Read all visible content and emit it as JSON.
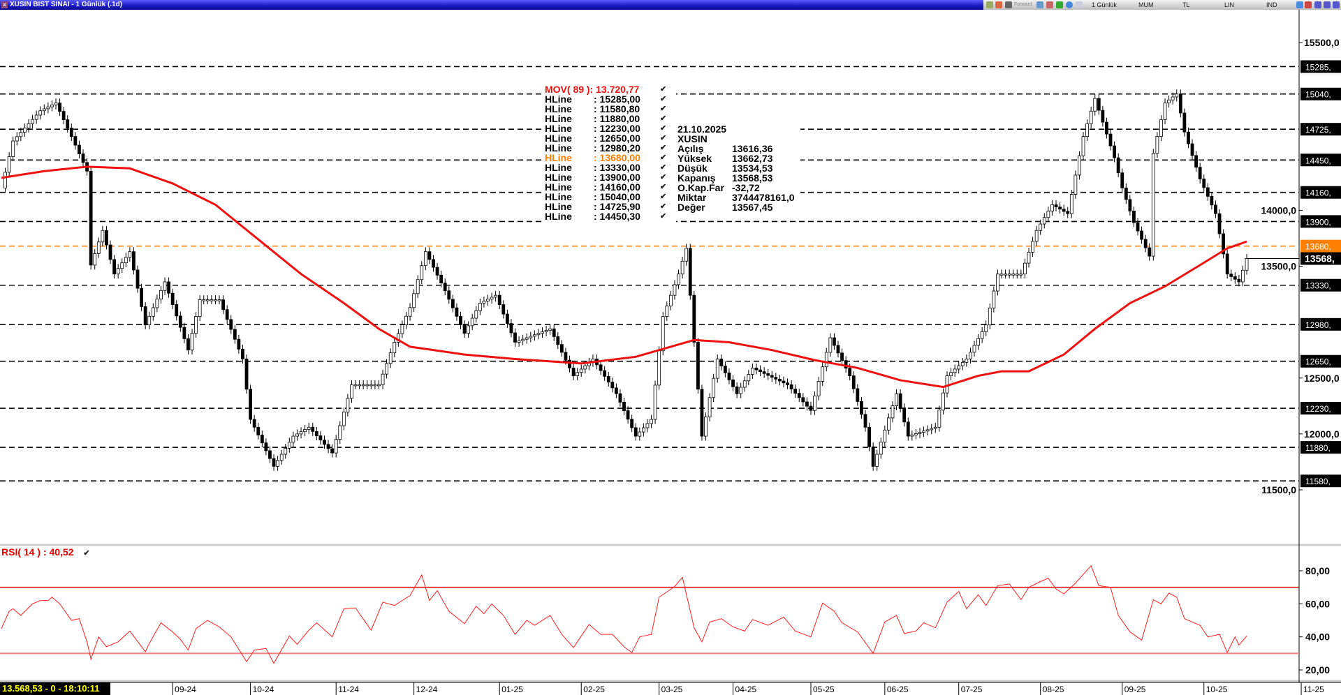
{
  "window": {
    "title": "XUSIN BIST SINAI - 1 Günlük (.1d)"
  },
  "toolbar": {
    "forward": "Forward",
    "period": "1 Günlük",
    "chart_type": "MUM",
    "currency": "TL",
    "scale": "LIN",
    "mode": "IND"
  },
  "legend": {
    "mov": "MOV( 89 ): 13.720,77",
    "hlines": [
      {
        "name": "HLine",
        "value": ": 15285,00"
      },
      {
        "name": "HLine",
        "value": ": 11580,80"
      },
      {
        "name": "HLine",
        "value": ": 11880,00"
      },
      {
        "name": "HLine",
        "value": ": 12230,00"
      },
      {
        "name": "HLine",
        "value": ": 12650,00"
      },
      {
        "name": "HLine",
        "value": ": 12980,20"
      },
      {
        "name": "HLine",
        "value": ": 13680,00",
        "highlight": true
      },
      {
        "name": "HLine",
        "value": ": 13330,00"
      },
      {
        "name": "HLine",
        "value": ": 13900,00"
      },
      {
        "name": "HLine",
        "value": ": 14160,00"
      },
      {
        "name": "HLine",
        "value": ": 15040,00"
      },
      {
        "name": "HLine",
        "value": ": 14725,90"
      },
      {
        "name": "HLine",
        "value": ": 14450,30"
      }
    ],
    "check": "✔"
  },
  "info": {
    "date": "21.10.2025",
    "symbol": "XUSIN",
    "rows": [
      {
        "k": "Açılış",
        "v": "13616,36"
      },
      {
        "k": "Yüksek",
        "v": "13662,73"
      },
      {
        "k": "Düşük",
        "v": "13534,53"
      },
      {
        "k": "Kapanış",
        "v": "13568,53"
      },
      {
        "k": "O.Kap.Far",
        "v": "-32,72"
      },
      {
        "k": "Miktar",
        "v": "3744478161,0"
      },
      {
        "k": "Değer",
        "v": "13567,45"
      }
    ]
  },
  "rsi_label": "RSI( 14 )  : 40,52",
  "status": "13.568,53 - 0 - 18:10:11",
  "colors": {
    "ma": "#ee1111",
    "hline_highlight": "#ff8000",
    "rsi": "#ff2020",
    "rsi_bands": "#e00000",
    "up": "#ffffff",
    "down": "#000000"
  },
  "chart_data": [
    {
      "type": "candlestick",
      "ylim": [
        11300,
        15700
      ],
      "y_ticks": [
        "15500,0",
        "14000,0",
        "13500,0",
        "12500,0",
        "12000,0",
        "11500,0"
      ],
      "y_tick_values": [
        15500,
        14000,
        13500,
        12500,
        12000,
        11500
      ],
      "x_ticks": [
        "09-24",
        "10-24",
        "11-24",
        "12-24",
        "01-25",
        "02-25",
        "03-25",
        "04-25",
        "05-25",
        "06-25",
        "07-25",
        "08-25",
        "09-25",
        "10-25",
        "11-25"
      ],
      "x_tick_days": [
        44,
        64,
        86,
        106,
        128,
        149,
        169,
        188,
        208,
        227,
        246,
        267,
        288,
        309,
        334
      ],
      "hlines": [
        {
          "value": 15285,
          "label": "15285,"
        },
        {
          "value": 15040,
          "label": "15040,"
        },
        {
          "value": 14725,
          "label": "14725,"
        },
        {
          "value": 14450,
          "label": "14450,"
        },
        {
          "value": 14160,
          "label": "14160,"
        },
        {
          "value": 13900,
          "label": "13900,"
        },
        {
          "value": 13680,
          "label": "13680,",
          "highlight": true
        },
        {
          "value": 13330,
          "label": "13330,"
        },
        {
          "value": 12980,
          "label": "12980,"
        },
        {
          "value": 12650,
          "label": "12650,"
        },
        {
          "value": 12230,
          "label": "12230,"
        },
        {
          "value": 11880,
          "label": "11880,"
        },
        {
          "value": 11580,
          "label": "11580,"
        }
      ],
      "last_price": {
        "value": 13568.53,
        "label": "13568,"
      },
      "closes": [
        [
          0,
          14200
        ],
        [
          3,
          14620
        ],
        [
          10,
          14890
        ],
        [
          14,
          14960
        ],
        [
          18,
          14660
        ],
        [
          22,
          14350
        ],
        [
          23,
          13510
        ],
        [
          26,
          13820
        ],
        [
          29,
          13430
        ],
        [
          33,
          13630
        ],
        [
          37,
          12975
        ],
        [
          42,
          13360
        ],
        [
          48,
          12750
        ],
        [
          51,
          13200
        ],
        [
          56,
          13200
        ],
        [
          62,
          12670
        ],
        [
          64,
          12130
        ],
        [
          70,
          11710
        ],
        [
          75,
          11980
        ],
        [
          79,
          12060
        ],
        [
          85,
          11830
        ],
        [
          90,
          12440
        ],
        [
          97,
          12440
        ],
        [
          101,
          12820
        ],
        [
          105,
          13130
        ],
        [
          109,
          13630
        ],
        [
          114,
          13280
        ],
        [
          119,
          12900
        ],
        [
          123,
          13170
        ],
        [
          127,
          13240
        ],
        [
          132,
          12820
        ],
        [
          141,
          12940
        ],
        [
          147,
          12520
        ],
        [
          152,
          12670
        ],
        [
          158,
          12360
        ],
        [
          163,
          11980
        ],
        [
          167,
          12130
        ],
        [
          170,
          13050
        ],
        [
          174,
          13430
        ],
        [
          176,
          13660
        ],
        [
          178,
          12820
        ],
        [
          180,
          11980
        ],
        [
          184,
          12670
        ],
        [
          189,
          12360
        ],
        [
          193,
          12590
        ],
        [
          202,
          12440
        ],
        [
          208,
          12210
        ],
        [
          213,
          12860
        ],
        [
          218,
          12520
        ],
        [
          222,
          12060
        ],
        [
          224,
          11710
        ],
        [
          230,
          12360
        ],
        [
          233,
          11980
        ],
        [
          240,
          12060
        ],
        [
          243,
          12520
        ],
        [
          248,
          12670
        ],
        [
          253,
          12975
        ],
        [
          256,
          13430
        ],
        [
          262,
          13430
        ],
        [
          266,
          13820
        ],
        [
          270,
          14050
        ],
        [
          274,
          13970
        ],
        [
          278,
          14660
        ],
        [
          281,
          15000
        ],
        [
          286,
          14470
        ],
        [
          288,
          14200
        ],
        [
          291,
          13890
        ],
        [
          295,
          13590
        ],
        [
          296,
          14510
        ],
        [
          299,
          14960
        ],
        [
          302,
          15040
        ],
        [
          304,
          14700
        ],
        [
          308,
          14280
        ],
        [
          312,
          13970
        ],
        [
          315,
          13430
        ],
        [
          318,
          13360
        ],
        [
          320,
          13568.53
        ]
      ],
      "ma_period": 89,
      "ma": [
        [
          0,
          14290
        ],
        [
          11,
          14350
        ],
        [
          22,
          14390
        ],
        [
          33,
          14375
        ],
        [
          44,
          14240
        ],
        [
          55,
          14050
        ],
        [
          66,
          13740
        ],
        [
          77,
          13430
        ],
        [
          88,
          13170
        ],
        [
          97,
          12940
        ],
        [
          105,
          12780
        ],
        [
          119,
          12710
        ],
        [
          132,
          12670
        ],
        [
          149,
          12630
        ],
        [
          163,
          12690
        ],
        [
          169,
          12750
        ],
        [
          178,
          12840
        ],
        [
          187,
          12820
        ],
        [
          198,
          12750
        ],
        [
          209,
          12660
        ],
        [
          220,
          12590
        ],
        [
          231,
          12480
        ],
        [
          242,
          12420
        ],
        [
          251,
          12520
        ],
        [
          257,
          12560
        ],
        [
          264,
          12560
        ],
        [
          273,
          12710
        ],
        [
          281,
          12940
        ],
        [
          290,
          13170
        ],
        [
          299,
          13320
        ],
        [
          308,
          13510
        ],
        [
          315,
          13660
        ],
        [
          320,
          13720.77
        ]
      ]
    },
    {
      "type": "line",
      "name": "RSI( 14 )",
      "ylim": [
        15,
        90
      ],
      "y_ticks": [
        "80,00",
        "60,00",
        "40,00",
        "20,00"
      ],
      "y_tick_values": [
        80,
        60,
        40,
        20
      ],
      "bands": [
        70,
        30
      ],
      "values": [
        [
          0,
          45
        ],
        [
          2,
          55.5
        ],
        [
          3,
          57
        ],
        [
          5,
          53
        ],
        [
          8,
          60
        ],
        [
          10,
          62
        ],
        [
          12,
          62
        ],
        [
          13,
          64
        ],
        [
          15,
          60
        ],
        [
          18,
          50
        ],
        [
          20,
          51
        ],
        [
          22,
          37
        ],
        [
          23,
          26.5
        ],
        [
          25,
          40
        ],
        [
          27,
          34
        ],
        [
          30,
          37
        ],
        [
          33,
          43.5
        ],
        [
          37,
          31
        ],
        [
          38,
          36
        ],
        [
          41,
          48.5
        ],
        [
          44,
          43
        ],
        [
          46,
          38.5
        ],
        [
          48,
          32
        ],
        [
          50,
          45
        ],
        [
          53,
          50
        ],
        [
          56,
          46
        ],
        [
          59,
          40
        ],
        [
          63,
          25
        ],
        [
          65,
          32
        ],
        [
          68,
          33
        ],
        [
          70,
          24
        ],
        [
          74,
          40.5
        ],
        [
          76,
          35.5
        ],
        [
          79,
          44
        ],
        [
          81,
          48.5
        ],
        [
          85,
          40
        ],
        [
          88,
          57
        ],
        [
          91,
          57.5
        ],
        [
          95,
          44
        ],
        [
          98,
          61
        ],
        [
          101,
          59
        ],
        [
          105,
          65
        ],
        [
          108,
          77.5
        ],
        [
          110,
          62
        ],
        [
          112,
          68
        ],
        [
          115,
          55.5
        ],
        [
          119,
          48
        ],
        [
          122,
          58.5
        ],
        [
          124,
          54
        ],
        [
          126,
          60
        ],
        [
          129,
          53
        ],
        [
          132,
          41.5
        ],
        [
          135,
          50
        ],
        [
          137,
          47
        ],
        [
          141,
          53
        ],
        [
          144,
          41.5
        ],
        [
          147,
          33.5
        ],
        [
          151,
          47.5
        ],
        [
          154,
          41.5
        ],
        [
          157,
          41.5
        ],
        [
          160,
          34
        ],
        [
          162,
          30.5
        ],
        [
          164,
          40
        ],
        [
          167,
          41.5
        ],
        [
          169,
          64
        ],
        [
          173,
          70.5
        ],
        [
          175,
          76
        ],
        [
          178,
          45.5
        ],
        [
          180,
          37
        ],
        [
          182,
          49
        ],
        [
          185,
          51
        ],
        [
          188,
          46
        ],
        [
          191,
          43.5
        ],
        [
          193,
          50.5
        ],
        [
          197,
          47
        ],
        [
          201,
          52
        ],
        [
          204,
          43.5
        ],
        [
          208,
          40
        ],
        [
          211,
          60.5
        ],
        [
          214,
          55.5
        ],
        [
          216,
          48.5
        ],
        [
          220,
          43
        ],
        [
          224,
          30
        ],
        [
          227,
          49
        ],
        [
          230,
          53
        ],
        [
          232,
          42
        ],
        [
          235,
          43.5
        ],
        [
          237,
          48.5
        ],
        [
          240,
          45.5
        ],
        [
          243,
          61
        ],
        [
          246,
          67.5
        ],
        [
          248,
          57
        ],
        [
          251,
          65.5
        ],
        [
          253,
          59
        ],
        [
          256,
          71
        ],
        [
          259,
          72
        ],
        [
          262,
          62.5
        ],
        [
          264,
          70
        ],
        [
          267,
          73.5
        ],
        [
          269,
          75.5
        ],
        [
          271,
          69
        ],
        [
          273,
          66
        ],
        [
          276,
          72.5
        ],
        [
          279,
          80.5
        ],
        [
          280,
          83
        ],
        [
          282,
          71
        ],
        [
          285,
          70
        ],
        [
          287,
          53
        ],
        [
          290,
          43
        ],
        [
          293,
          38
        ],
        [
          296,
          62.5
        ],
        [
          298,
          60
        ],
        [
          300,
          66.5
        ],
        [
          302,
          64
        ],
        [
          304,
          51
        ],
        [
          308,
          47
        ],
        [
          310,
          40
        ],
        [
          313,
          41.5
        ],
        [
          315,
          30.5
        ],
        [
          317,
          40
        ],
        [
          318,
          35
        ],
        [
          320,
          40.52
        ]
      ]
    }
  ]
}
